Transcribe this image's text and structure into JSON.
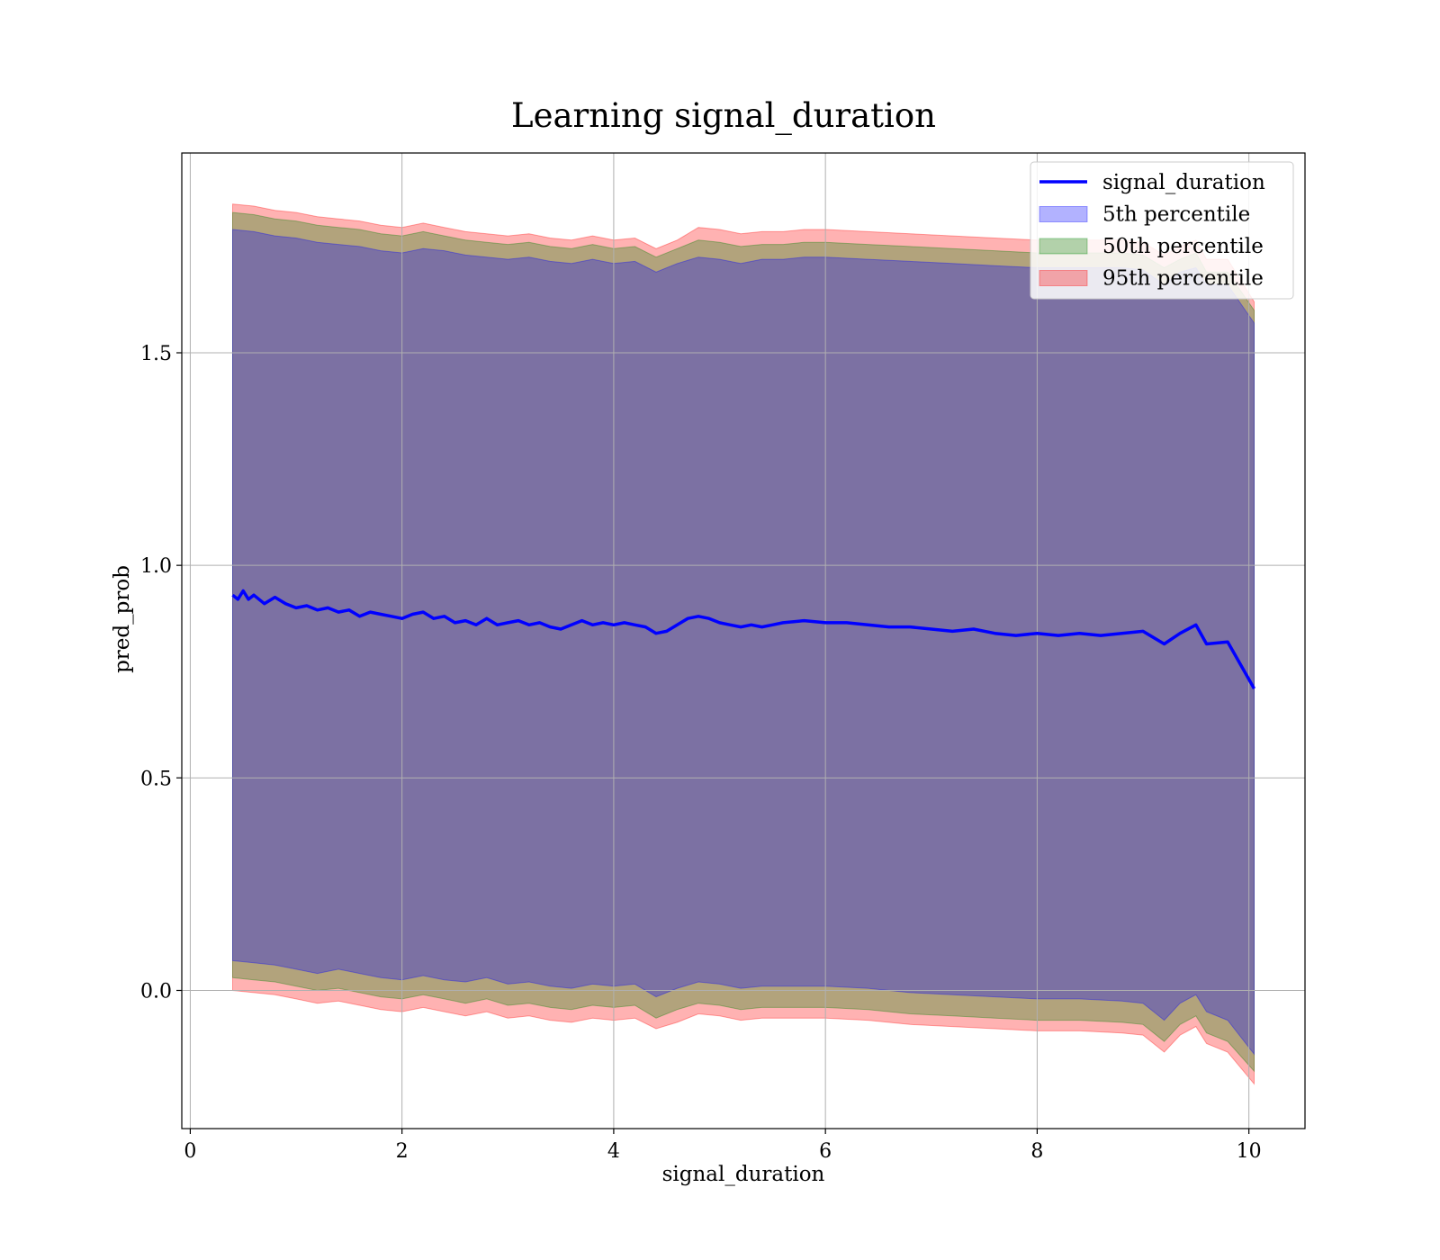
{
  "chart_data": {
    "type": "area",
    "title": "Learning signal_duration",
    "xlabel": "signal_duration",
    "ylabel": "pred_prob",
    "xlim": [
      -0.08,
      10.53
    ],
    "ylim": [
      -0.325,
      1.97
    ],
    "xticks": [
      0,
      2,
      4,
      6,
      8,
      10
    ],
    "xtick_labels": [
      "0",
      "2",
      "4",
      "6",
      "8",
      "10"
    ],
    "yticks": [
      0.0,
      0.5,
      1.0,
      1.5
    ],
    "ytick_labels": [
      "0.0",
      "0.5",
      "1.0",
      "1.5"
    ],
    "grid": true,
    "legend_position": "top-right",
    "line": {
      "name": "signal_duration",
      "color": "#0000ff",
      "x": [
        0.4,
        0.45,
        0.5,
        0.55,
        0.6,
        0.7,
        0.8,
        0.9,
        1.0,
        1.1,
        1.2,
        1.3,
        1.4,
        1.5,
        1.6,
        1.7,
        1.8,
        1.9,
        2.0,
        2.1,
        2.2,
        2.3,
        2.4,
        2.5,
        2.6,
        2.7,
        2.8,
        2.9,
        3.0,
        3.1,
        3.2,
        3.3,
        3.4,
        3.5,
        3.6,
        3.7,
        3.8,
        3.9,
        4.0,
        4.1,
        4.2,
        4.3,
        4.4,
        4.5,
        4.6,
        4.7,
        4.8,
        4.9,
        5.0,
        5.1,
        5.2,
        5.3,
        5.4,
        5.5,
        5.6,
        5.8,
        6.0,
        6.2,
        6.4,
        6.6,
        6.8,
        7.0,
        7.2,
        7.4,
        7.6,
        7.8,
        8.0,
        8.2,
        8.4,
        8.6,
        8.8,
        9.0,
        9.2,
        9.35,
        9.5,
        9.6,
        9.8,
        10.05
      ],
      "y": [
        0.93,
        0.92,
        0.94,
        0.92,
        0.93,
        0.91,
        0.925,
        0.91,
        0.9,
        0.905,
        0.895,
        0.9,
        0.89,
        0.895,
        0.88,
        0.89,
        0.885,
        0.88,
        0.875,
        0.885,
        0.89,
        0.875,
        0.88,
        0.865,
        0.87,
        0.86,
        0.875,
        0.86,
        0.865,
        0.87,
        0.86,
        0.865,
        0.855,
        0.85,
        0.86,
        0.87,
        0.86,
        0.865,
        0.86,
        0.865,
        0.86,
        0.855,
        0.84,
        0.845,
        0.86,
        0.875,
        0.88,
        0.875,
        0.865,
        0.86,
        0.855,
        0.86,
        0.855,
        0.86,
        0.865,
        0.87,
        0.865,
        0.865,
        0.86,
        0.855,
        0.855,
        0.85,
        0.845,
        0.85,
        0.84,
        0.835,
        0.84,
        0.835,
        0.84,
        0.835,
        0.84,
        0.845,
        0.815,
        0.84,
        0.86,
        0.815,
        0.82,
        0.71
      ]
    },
    "bands": [
      {
        "name": "5th percentile",
        "color": "#0000ff",
        "x": [
          0.4,
          0.6,
          0.8,
          1.0,
          1.2,
          1.4,
          1.6,
          1.8,
          2.0,
          2.2,
          2.4,
          2.6,
          2.8,
          3.0,
          3.2,
          3.4,
          3.6,
          3.8,
          4.0,
          4.2,
          4.4,
          4.6,
          4.8,
          5.0,
          5.2,
          5.4,
          5.6,
          5.8,
          6.0,
          6.4,
          6.8,
          7.2,
          7.6,
          8.0,
          8.4,
          8.8,
          9.0,
          9.2,
          9.35,
          9.5,
          9.6,
          9.8,
          10.05
        ],
        "upper": [
          1.79,
          1.785,
          1.775,
          1.77,
          1.76,
          1.755,
          1.75,
          1.74,
          1.735,
          1.745,
          1.74,
          1.73,
          1.725,
          1.72,
          1.725,
          1.715,
          1.71,
          1.72,
          1.71,
          1.715,
          1.69,
          1.71,
          1.725,
          1.72,
          1.71,
          1.72,
          1.72,
          1.725,
          1.725,
          1.72,
          1.715,
          1.71,
          1.705,
          1.7,
          1.7,
          1.7,
          1.695,
          1.66,
          1.69,
          1.7,
          1.66,
          1.66,
          1.57
        ],
        "lower": [
          0.07,
          0.065,
          0.06,
          0.05,
          0.04,
          0.05,
          0.04,
          0.03,
          0.025,
          0.035,
          0.025,
          0.02,
          0.03,
          0.015,
          0.02,
          0.01,
          0.005,
          0.015,
          0.01,
          0.015,
          -0.015,
          0.005,
          0.02,
          0.015,
          0.005,
          0.01,
          0.01,
          0.01,
          0.01,
          0.005,
          -0.005,
          -0.01,
          -0.015,
          -0.02,
          -0.02,
          -0.025,
          -0.03,
          -0.07,
          -0.03,
          -0.01,
          -0.05,
          -0.07,
          -0.15
        ]
      },
      {
        "name": "50th percentile",
        "color": "#008000",
        "x": [
          0.4,
          0.6,
          0.8,
          1.0,
          1.2,
          1.4,
          1.6,
          1.8,
          2.0,
          2.2,
          2.4,
          2.6,
          2.8,
          3.0,
          3.2,
          3.4,
          3.6,
          3.8,
          4.0,
          4.2,
          4.4,
          4.6,
          4.8,
          5.0,
          5.2,
          5.4,
          5.6,
          5.8,
          6.0,
          6.4,
          6.8,
          7.2,
          7.6,
          8.0,
          8.4,
          8.8,
          9.0,
          9.2,
          9.35,
          9.5,
          9.6,
          9.8,
          10.05
        ],
        "upper": [
          1.83,
          1.825,
          1.815,
          1.81,
          1.8,
          1.795,
          1.79,
          1.78,
          1.775,
          1.785,
          1.775,
          1.765,
          1.76,
          1.755,
          1.76,
          1.75,
          1.745,
          1.755,
          1.745,
          1.75,
          1.725,
          1.745,
          1.765,
          1.76,
          1.75,
          1.755,
          1.755,
          1.76,
          1.76,
          1.755,
          1.75,
          1.745,
          1.74,
          1.735,
          1.735,
          1.735,
          1.73,
          1.7,
          1.72,
          1.735,
          1.69,
          1.69,
          1.6
        ],
        "lower": [
          0.03,
          0.025,
          0.02,
          0.01,
          0.0,
          0.005,
          -0.005,
          -0.015,
          -0.02,
          -0.01,
          -0.02,
          -0.03,
          -0.02,
          -0.035,
          -0.03,
          -0.04,
          -0.045,
          -0.035,
          -0.04,
          -0.035,
          -0.065,
          -0.045,
          -0.03,
          -0.035,
          -0.045,
          -0.04,
          -0.04,
          -0.04,
          -0.04,
          -0.045,
          -0.055,
          -0.06,
          -0.065,
          -0.07,
          -0.07,
          -0.075,
          -0.08,
          -0.12,
          -0.08,
          -0.06,
          -0.1,
          -0.12,
          -0.19
        ]
      },
      {
        "name": "95th percentile",
        "color": "#ff0000",
        "x": [
          0.4,
          0.6,
          0.8,
          1.0,
          1.2,
          1.4,
          1.6,
          1.8,
          2.0,
          2.2,
          2.4,
          2.6,
          2.8,
          3.0,
          3.2,
          3.4,
          3.6,
          3.8,
          4.0,
          4.2,
          4.4,
          4.6,
          4.8,
          5.0,
          5.2,
          5.4,
          5.6,
          5.8,
          6.0,
          6.4,
          6.8,
          7.2,
          7.6,
          8.0,
          8.4,
          8.8,
          9.0,
          9.2,
          9.35,
          9.5,
          9.6,
          9.8,
          10.05
        ],
        "upper": [
          1.85,
          1.845,
          1.835,
          1.83,
          1.82,
          1.815,
          1.81,
          1.8,
          1.795,
          1.805,
          1.795,
          1.785,
          1.78,
          1.775,
          1.78,
          1.77,
          1.765,
          1.775,
          1.765,
          1.77,
          1.745,
          1.765,
          1.795,
          1.79,
          1.78,
          1.785,
          1.785,
          1.79,
          1.79,
          1.785,
          1.78,
          1.775,
          1.77,
          1.765,
          1.765,
          1.765,
          1.76,
          1.73,
          1.75,
          1.765,
          1.72,
          1.72,
          1.62
        ],
        "lower": [
          0.0,
          -0.005,
          -0.01,
          -0.02,
          -0.03,
          -0.025,
          -0.035,
          -0.045,
          -0.05,
          -0.04,
          -0.05,
          -0.06,
          -0.05,
          -0.065,
          -0.06,
          -0.07,
          -0.075,
          -0.065,
          -0.07,
          -0.065,
          -0.09,
          -0.075,
          -0.055,
          -0.06,
          -0.07,
          -0.065,
          -0.065,
          -0.065,
          -0.065,
          -0.07,
          -0.08,
          -0.085,
          -0.09,
          -0.095,
          -0.095,
          -0.1,
          -0.105,
          -0.145,
          -0.105,
          -0.085,
          -0.125,
          -0.145,
          -0.22
        ]
      }
    ],
    "legend": [
      {
        "label": "signal_duration",
        "kind": "line",
        "color": "#0000ff"
      },
      {
        "label": "5th percentile",
        "kind": "patch",
        "color": "#0000ff"
      },
      {
        "label": "50th percentile",
        "kind": "patch",
        "color": "#008000"
      },
      {
        "label": "95th percentile",
        "kind": "patch",
        "color": "#ff0000"
      }
    ]
  }
}
